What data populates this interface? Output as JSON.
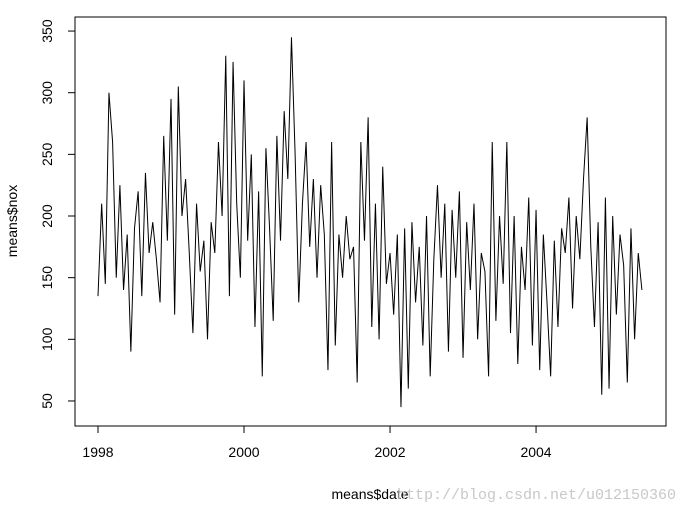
{
  "chart_data": {
    "type": "line",
    "x_label": "means$date",
    "y_label": "means$nox",
    "watermark": "http://blog.csdn.net/u012150360",
    "color": "#000000",
    "xlim": [
      1997.685,
      2005.78
    ],
    "ylim": [
      29.7,
      361.4
    ],
    "xticks": [
      1998,
      2000,
      2002,
      2004
    ],
    "yticks": [
      50,
      100,
      150,
      200,
      250,
      300,
      350
    ],
    "x": [
      1998,
      1998.05,
      1998.1,
      1998.15,
      1998.2,
      1998.25,
      1998.3,
      1998.35,
      1998.4,
      1998.45,
      1998.5,
      1998.55,
      1998.6,
      1998.65,
      1998.7,
      1998.75,
      1998.8,
      1998.85,
      1998.9,
      1998.95,
      1999,
      1999.05,
      1999.1,
      1999.15,
      1999.2,
      1999.25,
      1999.3,
      1999.35,
      1999.4,
      1999.45,
      1999.5,
      1999.55,
      1999.6,
      1999.65,
      1999.7,
      1999.75,
      1999.8,
      1999.85,
      1999.9,
      1999.95,
      2000,
      2000.05,
      2000.1,
      2000.15,
      2000.2,
      2000.25,
      2000.3,
      2000.35,
      2000.4,
      2000.45,
      2000.5,
      2000.55,
      2000.6,
      2000.65,
      2000.7,
      2000.75,
      2000.8,
      2000.85,
      2000.9,
      2000.95,
      2001,
      2001.05,
      2001.1,
      2001.15,
      2001.2,
      2001.25,
      2001.3,
      2001.35,
      2001.4,
      2001.45,
      2001.5,
      2001.55,
      2001.6,
      2001.65,
      2001.7,
      2001.75,
      2001.8,
      2001.85,
      2001.9,
      2001.95,
      2002,
      2002.05,
      2002.1,
      2002.15,
      2002.2,
      2002.25,
      2002.3,
      2002.35,
      2002.4,
      2002.45,
      2002.5,
      2002.55,
      2002.6,
      2002.65,
      2002.7,
      2002.75,
      2002.8,
      2002.85,
      2002.9,
      2002.95,
      2003,
      2003.05,
      2003.1,
      2003.15,
      2003.2,
      2003.25,
      2003.3,
      2003.35,
      2003.4,
      2003.45,
      2003.5,
      2003.55,
      2003.6,
      2003.65,
      2003.7,
      2003.75,
      2003.8,
      2003.85,
      2003.9,
      2003.95,
      2004,
      2004.05,
      2004.1,
      2004.15,
      2004.2,
      2004.25,
      2004.3,
      2004.35,
      2004.4,
      2004.45,
      2004.5,
      2004.55,
      2004.6,
      2004.65,
      2004.7,
      2004.75,
      2004.8,
      2004.85,
      2004.9,
      2004.95,
      2005,
      2005.05,
      2005.1,
      2005.15,
      2005.2,
      2005.25,
      2005.3,
      2005.35,
      2005.4,
      2005.45
    ],
    "values": [
      135,
      210,
      145,
      300,
      260,
      150,
      225,
      140,
      185,
      90,
      190,
      220,
      135,
      235,
      170,
      195,
      165,
      130,
      265,
      180,
      295,
      120,
      305,
      200,
      230,
      170,
      105,
      210,
      155,
      180,
      100,
      195,
      170,
      260,
      200,
      330,
      135,
      325,
      210,
      150,
      310,
      180,
      250,
      110,
      220,
      70,
      255,
      190,
      115,
      265,
      180,
      285,
      230,
      345,
      250,
      130,
      210,
      260,
      175,
      230,
      150,
      225,
      185,
      75,
      260,
      95,
      185,
      150,
      200,
      165,
      175,
      65,
      260,
      180,
      280,
      110,
      210,
      100,
      240,
      145,
      170,
      120,
      185,
      45,
      190,
      60,
      195,
      130,
      175,
      95,
      200,
      70,
      165,
      225,
      150,
      210,
      90,
      205,
      150,
      220,
      85,
      195,
      140,
      210,
      100,
      170,
      155,
      70,
      260,
      115,
      200,
      145,
      260,
      105,
      200,
      80,
      175,
      140,
      215,
      95,
      205,
      75,
      185,
      130,
      70,
      180,
      110,
      190,
      170,
      215,
      125,
      200,
      165,
      230,
      280,
      175,
      110,
      195,
      55,
      215,
      60,
      200,
      120,
      185,
      160,
      65,
      190,
      100,
      170,
      140
    ]
  }
}
